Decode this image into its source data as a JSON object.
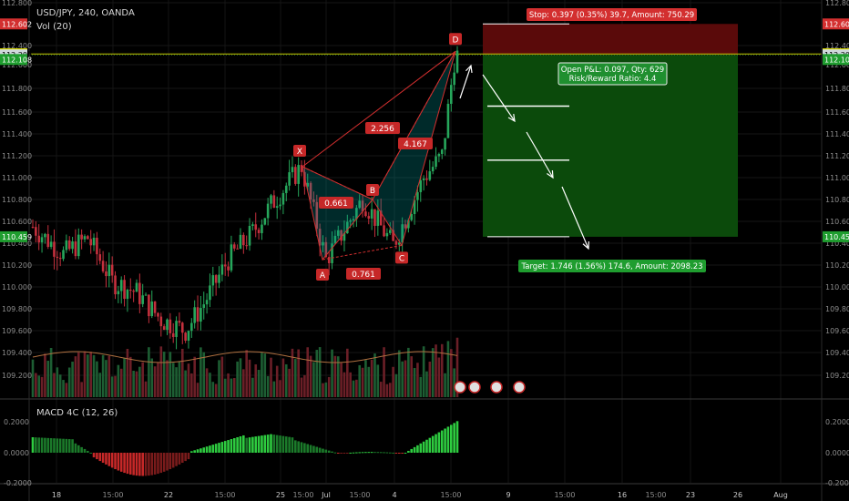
{
  "header": {
    "symbol_line": "USD/JPY, 240, OANDA",
    "volume_label": "Vol (20)",
    "macd_label": "MACD 4C (12, 26)"
  },
  "chart_data": {
    "type": "candlestick",
    "symbol": "USD/JPY",
    "interval": "240",
    "source": "OANDA",
    "price_axis": {
      "range": [
        109.2,
        112.8
      ],
      "ticks": [
        "112.800",
        "112.400",
        "112.000",
        "111.800",
        "111.600",
        "111.400",
        "111.200",
        "111.000",
        "110.800",
        "110.600",
        "110.400",
        "110.200",
        "110.000",
        "109.800",
        "109.600",
        "109.400",
        "109.200"
      ],
      "tick_values": [
        112.8,
        112.4,
        112.0,
        111.8,
        111.6,
        111.4,
        111.2,
        111.0,
        110.8,
        110.6,
        110.4,
        110.2,
        110.0,
        109.8,
        109.6,
        109.4,
        109.2
      ],
      "badges": [
        {
          "label": "112.602",
          "value": 112.602,
          "color": "#d32f2f"
        },
        {
          "label": "112.225",
          "value": 112.225,
          "color": "#f5f500"
        },
        {
          "label": "112.205",
          "value": 112.205,
          "color": "#cfd8dc"
        },
        {
          "label": "112.108",
          "value": 112.108,
          "color": "#1f9d2f"
        },
        {
          "label": "110.459",
          "value": 110.459,
          "color": "#1f9d2f"
        }
      ]
    },
    "time_axis": {
      "labels": [
        "18",
        "15:00",
        "22",
        "15:00",
        "25",
        "15:00",
        "Jul",
        "15:00",
        "4",
        "15:00",
        "9",
        "15:00",
        "16",
        "15:00",
        "23",
        "26",
        "Aug"
      ]
    },
    "harmonic_pattern": {
      "points": [
        {
          "label": "X",
          "value": 111.1
        },
        {
          "label": "A",
          "value": 110.25
        },
        {
          "label": "B",
          "value": 110.8
        },
        {
          "label": "C",
          "value": 110.38
        },
        {
          "label": "D",
          "value": 112.28
        }
      ],
      "ratios": [
        "0.661",
        "0.761",
        "2.256",
        "4.167"
      ]
    },
    "position": {
      "stop_text": "Stop: 0.397 (0.35%) 39.7, Amount: 750.29",
      "pnl_text": "Open P&L: 0.097, Qty: 629",
      "rr_text": "Risk/Reward Ratio: 4.4",
      "target_text": "Target: 1.746 (1.56%) 174.6, Amount: 2098.23",
      "entry": 112.205,
      "stop": 112.602,
      "target": 110.459,
      "qty": 629
    },
    "macd": {
      "ticks": [
        "0.2000",
        "0.0000",
        "-0.2000"
      ],
      "tick_values": [
        0.2,
        0.0,
        -0.2
      ]
    },
    "colors": {
      "up": "#26a65b",
      "down": "#c4303d",
      "pattern": "#d32f2f",
      "stop_zone": "#5a0a0a",
      "target_zone": "#0b4a0b",
      "entry_line": "#c8c800"
    }
  }
}
